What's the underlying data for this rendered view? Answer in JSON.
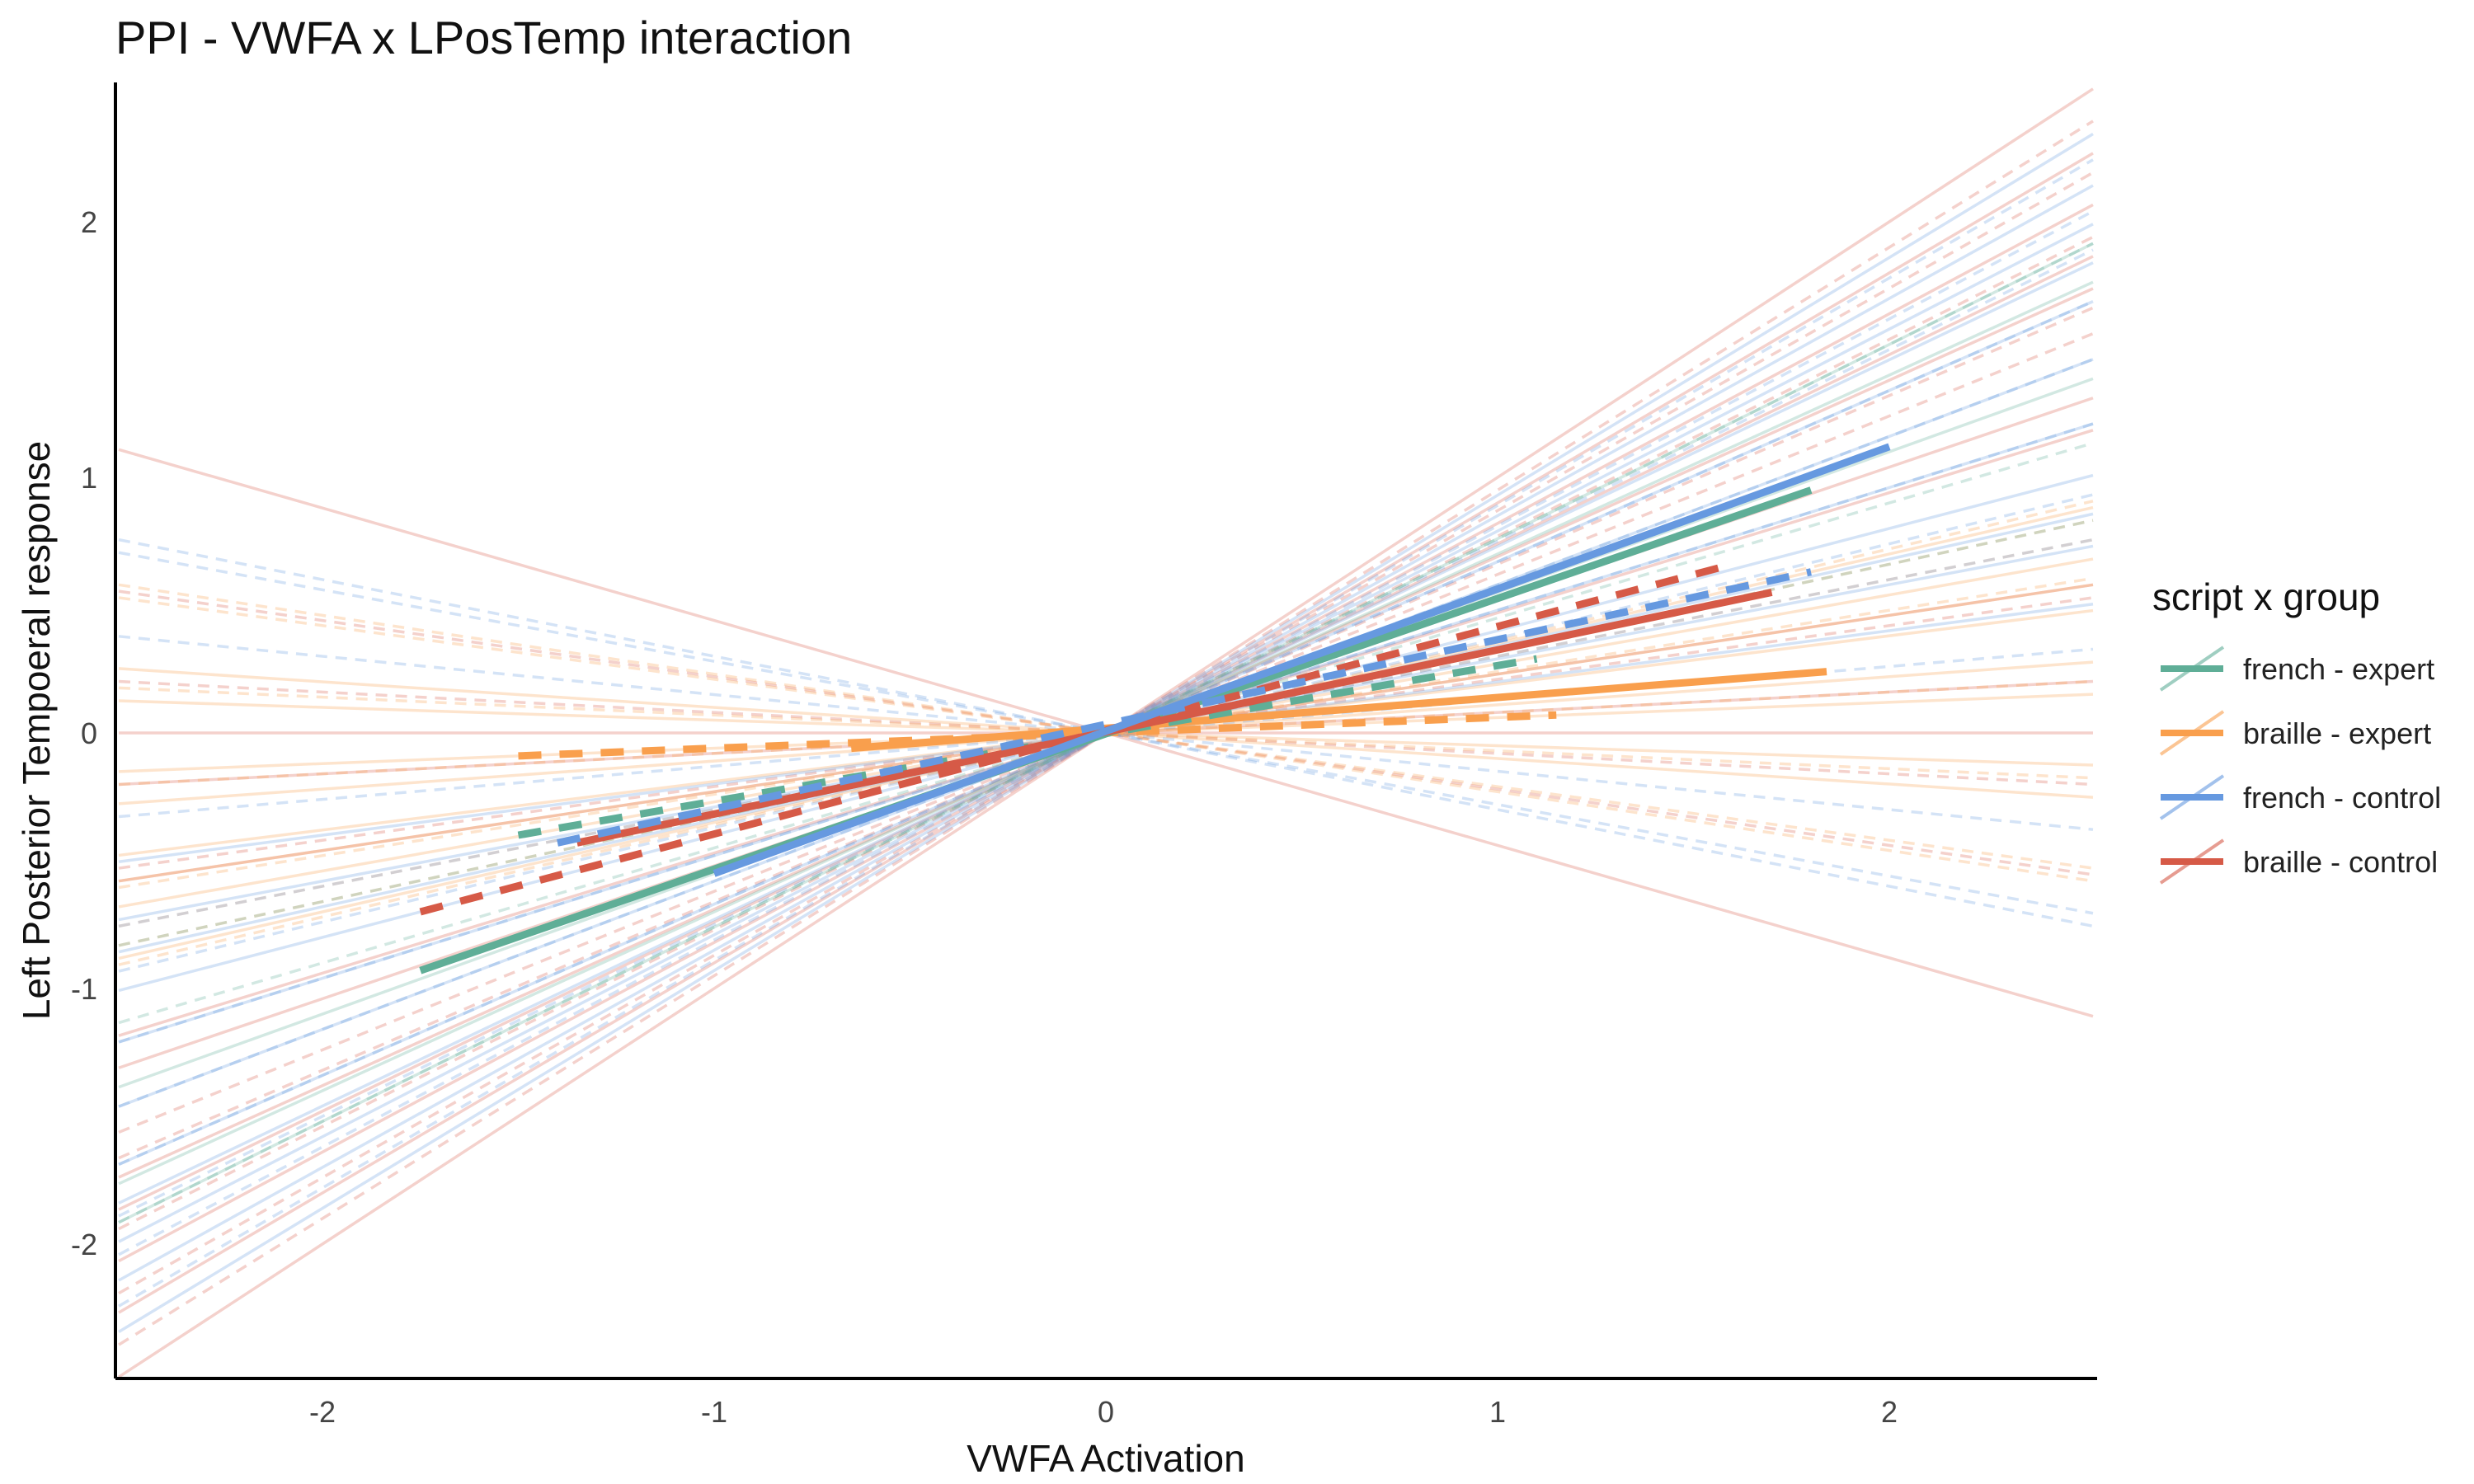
{
  "chart_data": {
    "type": "line",
    "title": "PPI - VWFA x LPosTemp interaction",
    "xlabel": "VWFA Activation",
    "ylabel": "Left Posterior Tempoeral response",
    "xlim": [
      -2.52,
      2.52
    ],
    "ylim": [
      -2.5,
      2.5
    ],
    "x_ticks": [
      "-2",
      "-1",
      "0",
      "1",
      "2"
    ],
    "y_ticks": [
      "-2",
      "-1",
      "0",
      "1",
      "2"
    ],
    "grid": false,
    "legend": {
      "title": "script x group",
      "position": "right",
      "entries": [
        "french - expert",
        "braille - expert",
        "french - control",
        "braille - control"
      ]
    },
    "colors": {
      "french - expert": "#5fae97",
      "braille - expert": "#f99f4d",
      "french - control": "#6699e0",
      "braille - control": "#d65a47"
    },
    "series": [
      {
        "name": "french - expert",
        "linetype": "solid",
        "x": [
          -1.75,
          1.8
        ],
        "y": [
          -0.93,
          0.95
        ]
      },
      {
        "name": "braille - expert",
        "linetype": "solid",
        "x": [
          -0.65,
          1.84
        ],
        "y": [
          -0.06,
          0.24
        ]
      },
      {
        "name": "french - control",
        "linetype": "solid",
        "x": [
          -1.0,
          2.0
        ],
        "y": [
          -0.55,
          1.12
        ]
      },
      {
        "name": "braille - control",
        "linetype": "solid",
        "x": [
          -1.35,
          1.7
        ],
        "y": [
          -0.43,
          0.55
        ]
      },
      {
        "name": "french - expert",
        "linetype": "dashed",
        "x": [
          -1.5,
          1.1
        ],
        "y": [
          -0.4,
          0.29
        ]
      },
      {
        "name": "braille - expert",
        "linetype": "dashed",
        "x": [
          -1.5,
          1.15
        ],
        "y": [
          -0.09,
          0.07
        ]
      },
      {
        "name": "french - control",
        "linetype": "dashed",
        "x": [
          -1.4,
          1.8
        ],
        "y": [
          -0.43,
          0.63
        ]
      },
      {
        "name": "braille - control",
        "linetype": "dashed",
        "x": [
          -1.75,
          1.6
        ],
        "y": [
          -0.7,
          0.66
        ]
      }
    ],
    "background_slopes": {
      "braille - control": {
        "solid": [
          -0.44,
          0,
          0.08,
          0.23,
          0.47,
          0.52,
          0.69,
          0.74,
          0.82,
          0.9,
          1.0
        ],
        "dashed": [
          -0.22,
          -0.08,
          0.21,
          0.62,
          0.66,
          0.77,
          0.87,
          0.95
        ]
      },
      "braille - expert": {
        "solid": [
          -0.1,
          -0.05,
          0.06,
          0.11,
          0.19,
          0.23,
          0.27,
          0.35
        ],
        "dashed": [
          -0.23,
          -0.21,
          -0.07,
          0.08,
          0.24,
          0.3,
          0.33,
          0.36
        ]
      },
      "french - control": {
        "solid": [
          0.2,
          0.29,
          0.34,
          0.4,
          0.48,
          0.58,
          0.67,
          0.73,
          0.79,
          0.85,
          0.93
        ],
        "dashed": [
          -0.3,
          -0.28,
          -0.15,
          0.13,
          0.3,
          0.37,
          0.48,
          0.58,
          0.67,
          0.75,
          0.81,
          0.89
        ]
      },
      "french - expert": {
        "solid": [
          0.55,
          0.7,
          0.76
        ],
        "dashed": [
          0.33,
          0.45,
          0.76
        ]
      }
    }
  }
}
